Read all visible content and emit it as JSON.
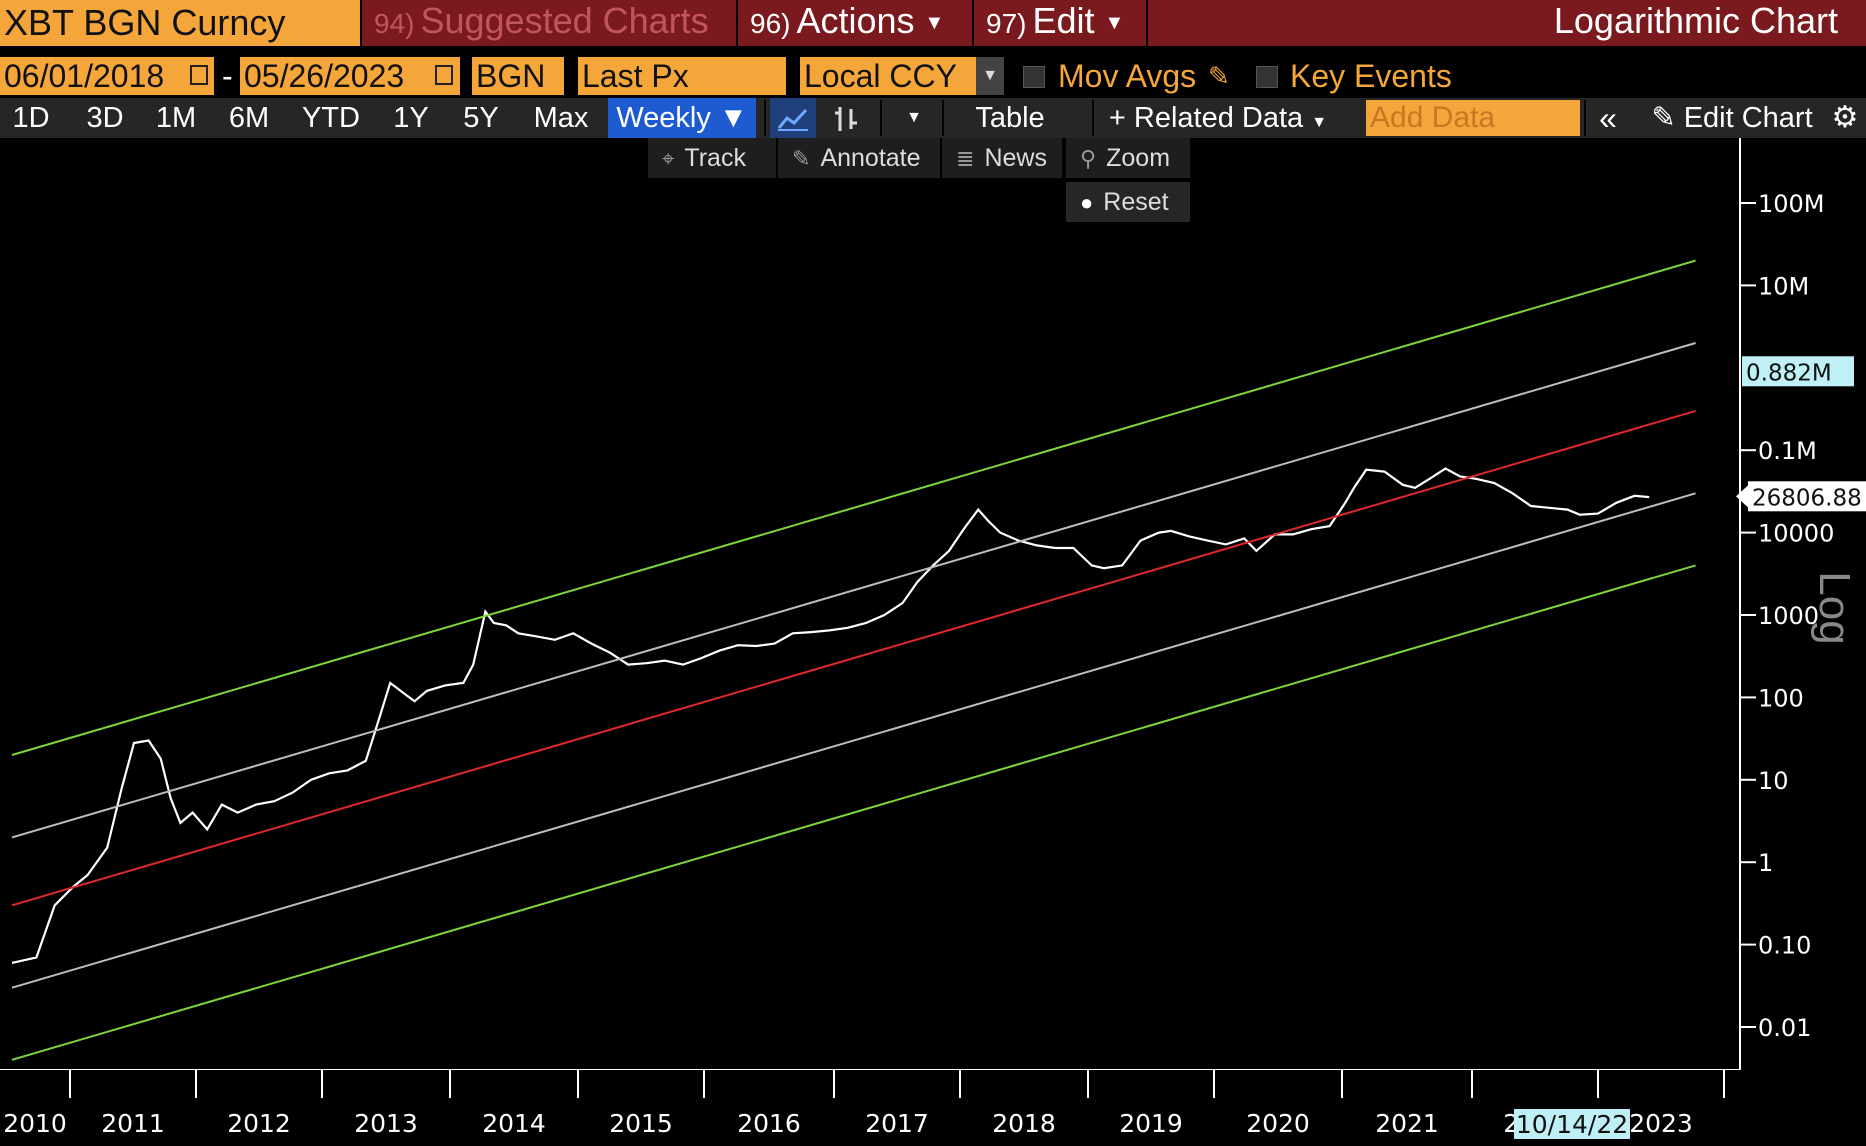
{
  "header": {
    "ticker": "XBT BGN Curncy",
    "menu_suggested_num": "94)",
    "menu_suggested": "Suggested Charts",
    "menu_actions_num": "96)",
    "menu_actions": "Actions",
    "menu_edit_num": "97)",
    "menu_edit": "Edit",
    "chart_title": "Logarithmic Chart"
  },
  "params": {
    "start_date": "06/01/2018",
    "end_date": "05/26/2023",
    "dash": "-",
    "source": "BGN",
    "field": "Last Px",
    "currency": "Local CCY",
    "mov_avgs": "Mov Avgs",
    "key_events": "Key Events"
  },
  "toolbar": {
    "periods": [
      "1D",
      "3D",
      "1M",
      "6M",
      "YTD",
      "1Y",
      "5Y",
      "Max"
    ],
    "frequency": "Weekly",
    "table": "Table",
    "related_data": "Related Data",
    "add_data_placeholder": "Add Data",
    "edit_chart": "Edit Chart"
  },
  "chart_tools": {
    "track": "Track",
    "annotate": "Annotate",
    "news": "News",
    "zoom": "Zoom",
    "reset": "Reset"
  },
  "chart_data": {
    "type": "line",
    "title": "Logarithmic Chart",
    "y_scale": "log",
    "y_axis_label": "Log",
    "ylim": [
      0.003,
      300000000
    ],
    "y_ticks": [
      {
        "value": 100000000,
        "label": "100M"
      },
      {
        "value": 10000000,
        "label": "10M"
      },
      {
        "value": 100000,
        "label": "0.1M"
      },
      {
        "value": 10000,
        "label": "10000"
      },
      {
        "value": 1000,
        "label": "1000"
      },
      {
        "value": 100,
        "label": "100"
      },
      {
        "value": 10,
        "label": "10"
      },
      {
        "value": 1,
        "label": "1"
      },
      {
        "value": 0.1,
        "label": "0.10"
      },
      {
        "value": 0.01,
        "label": "0.01"
      }
    ],
    "x_ticks": [
      "2010",
      "2011",
      "2012",
      "2013",
      "2014",
      "2015",
      "2016",
      "2017",
      "2018",
      "2019",
      "2020",
      "2021",
      "2022",
      "2023"
    ],
    "x_range": [
      2010.0,
      2024.0
    ],
    "price_labels": [
      {
        "value": 882000,
        "label": "0.882M"
      },
      {
        "value": 26806.88,
        "label": "26806.88"
      }
    ],
    "crosshair_date": "10/14/22",
    "grid": false,
    "series": [
      {
        "color": "#ffffff",
        "x": [
          2010.0,
          2010.2,
          2010.35,
          2010.5,
          2010.62,
          2010.78,
          2010.9,
          2011.0,
          2011.12,
          2011.22,
          2011.3,
          2011.38,
          2011.48,
          2011.6,
          2011.72,
          2011.85,
          2012.0,
          2012.15,
          2012.3,
          2012.45,
          2012.6,
          2012.75,
          2012.9,
          2013.0,
          2013.1,
          2013.22,
          2013.3,
          2013.4,
          2013.55,
          2013.7,
          2013.78,
          2013.88,
          2013.95,
          2014.05,
          2014.15,
          2014.3,
          2014.45,
          2014.6,
          2014.75,
          2014.9,
          2015.05,
          2015.2,
          2015.35,
          2015.5,
          2015.65,
          2015.8,
          2015.95,
          2016.1,
          2016.25,
          2016.4,
          2016.55,
          2016.7,
          2016.85,
          2017.0,
          2017.15,
          2017.3,
          2017.42,
          2017.55,
          2017.68,
          2017.8,
          2017.92,
          2018.0,
          2018.1,
          2018.25,
          2018.4,
          2018.55,
          2018.7,
          2018.85,
          2018.95,
          2019.1,
          2019.25,
          2019.4,
          2019.5,
          2019.65,
          2019.8,
          2019.95,
          2020.1,
          2020.2,
          2020.35,
          2020.5,
          2020.65,
          2020.8,
          2020.92,
          2021.0,
          2021.1,
          2021.25,
          2021.4,
          2021.5,
          2021.62,
          2021.75,
          2021.87,
          2022.0,
          2022.15,
          2022.3,
          2022.45,
          2022.6,
          2022.75,
          2022.85,
          2023.0,
          2023.15,
          2023.3,
          2023.42
        ],
        "values": [
          0.06,
          0.07,
          0.3,
          0.5,
          0.7,
          1.5,
          8,
          28,
          30,
          18,
          6,
          3,
          4,
          2.5,
          5,
          4,
          5,
          5.5,
          7,
          10,
          12,
          13,
          17,
          50,
          150,
          110,
          90,
          120,
          140,
          150,
          250,
          1100,
          800,
          750,
          600,
          550,
          500,
          600,
          450,
          350,
          250,
          260,
          280,
          250,
          300,
          370,
          430,
          420,
          450,
          600,
          620,
          650,
          700,
          800,
          1000,
          1400,
          2500,
          4000,
          6000,
          11000,
          19000,
          14000,
          10000,
          8000,
          7000,
          6500,
          6500,
          4000,
          3700,
          4000,
          8000,
          10000,
          10500,
          9000,
          8000,
          7200,
          8500,
          6000,
          9500,
          9500,
          11000,
          12000,
          22000,
          35000,
          58000,
          55000,
          38000,
          35000,
          45000,
          60000,
          48000,
          45000,
          40000,
          30000,
          21000,
          20000,
          19000,
          16500,
          17000,
          23000,
          28000,
          27000
        ]
      },
      {
        "color": "#7cd63b",
        "x": [
          2010.0,
          2023.8
        ],
        "values": [
          20,
          20000000
        ]
      },
      {
        "color": "#bdbdbd",
        "x": [
          2010.0,
          2023.8
        ],
        "values": [
          2,
          2000000
        ]
      },
      {
        "color": "#e0282a",
        "x": [
          2010.0,
          2023.8
        ],
        "values": [
          0.3,
          300000
        ]
      },
      {
        "color": "#bdbdbd",
        "x": [
          2010.0,
          2023.8
        ],
        "values": [
          0.03,
          30000
        ]
      },
      {
        "color": "#7cd63b",
        "x": [
          2010.0,
          2023.8
        ],
        "values": [
          0.004,
          4000
        ]
      }
    ]
  }
}
